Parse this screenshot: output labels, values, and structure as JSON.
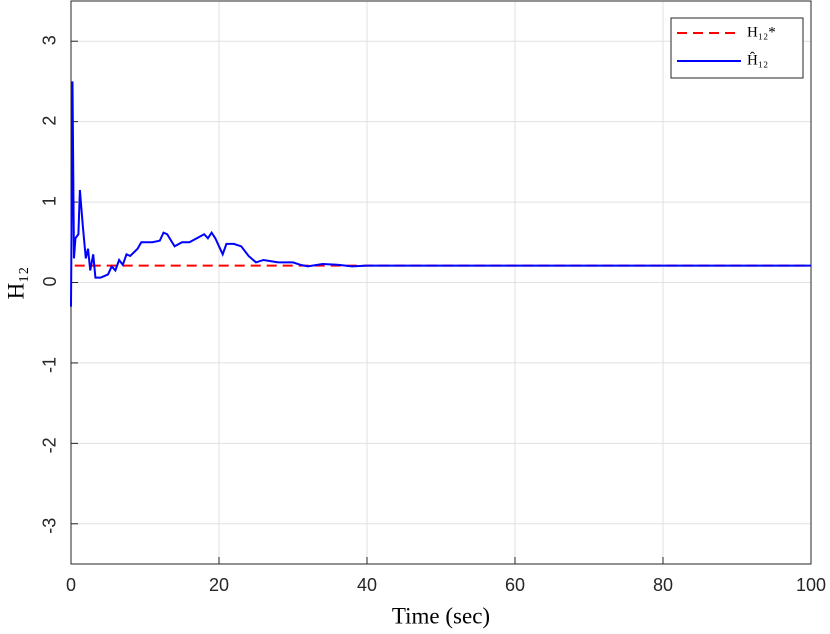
{
  "chart_data": {
    "type": "line",
    "xlabel": "Time (sec)",
    "ylabel": "H₁₂",
    "xlim": [
      0,
      100
    ],
    "ylim": [
      -3.5,
      3.5
    ],
    "xticks": [
      0,
      20,
      40,
      60,
      80,
      100
    ],
    "yticks": [
      -3,
      -2,
      -1,
      0,
      1,
      2,
      3
    ],
    "grid": true,
    "legend": "top-right",
    "series": [
      {
        "name": "H₁₂*",
        "color": "#ff0000",
        "dash": true,
        "x": [
          0.5,
          100
        ],
        "values": [
          0.21,
          0.21
        ]
      },
      {
        "name": "Ĥ₁₂",
        "color": "#0000ff",
        "dash": false,
        "x": [
          0,
          0.2,
          0.4,
          0.6,
          1.0,
          1.2,
          1.6,
          2.0,
          2.3,
          2.6,
          3.0,
          3.3,
          4,
          5,
          5.5,
          6,
          6.5,
          7,
          7.5,
          8,
          9,
          9.5,
          11,
          12,
          12.5,
          13,
          14,
          15,
          16,
          17,
          18,
          18.5,
          19,
          19.5,
          20,
          20.5,
          21,
          22,
          23,
          24,
          25,
          26,
          28,
          30,
          31,
          32,
          34,
          36,
          38,
          40,
          45,
          100
        ],
        "values": [
          -0.3,
          2.5,
          0.3,
          0.55,
          0.6,
          1.15,
          0.7,
          0.3,
          0.42,
          0.15,
          0.35,
          0.06,
          0.06,
          0.1,
          0.2,
          0.15,
          0.28,
          0.22,
          0.35,
          0.33,
          0.42,
          0.5,
          0.5,
          0.52,
          0.62,
          0.6,
          0.45,
          0.5,
          0.5,
          0.55,
          0.6,
          0.55,
          0.62,
          0.55,
          0.45,
          0.35,
          0.48,
          0.48,
          0.45,
          0.33,
          0.25,
          0.28,
          0.25,
          0.25,
          0.22,
          0.2,
          0.23,
          0.22,
          0.2,
          0.21,
          0.21,
          0.21
        ]
      }
    ]
  }
}
